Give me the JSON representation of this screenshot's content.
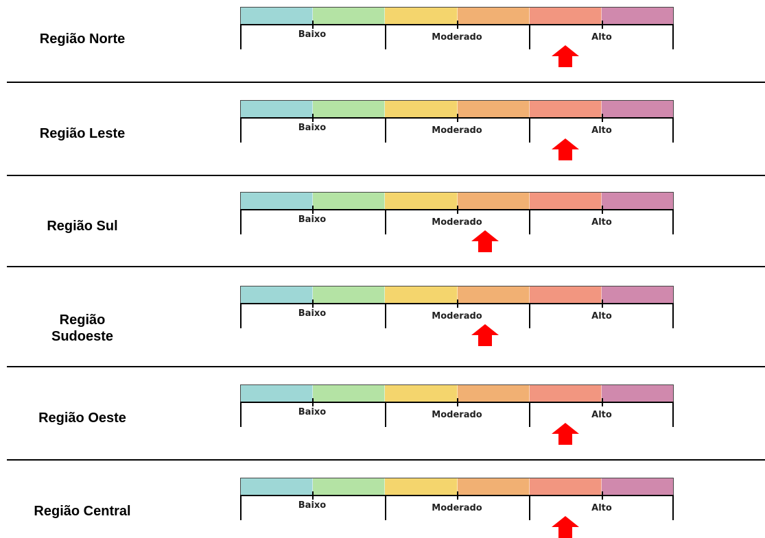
{
  "colors": {
    "band_colors": [
      "#9ed7d6",
      "#b4e3a4",
      "#f4d56d",
      "#f1b073",
      "#f29680",
      "#d089ad"
    ],
    "arrow": "#ff0000"
  },
  "scale_labels": {
    "low": "Baixo",
    "moderate": "Moderado",
    "high": "Alto"
  },
  "regions": [
    {
      "name": "Região Norte",
      "indicator_level": "Alto"
    },
    {
      "name": "Região Leste",
      "indicator_level": "Alto"
    },
    {
      "name": "Região Sul",
      "indicator_level": "Moderado"
    },
    {
      "name": "Região Sudoeste",
      "indicator_level": "Moderado"
    },
    {
      "name": "Região Oeste",
      "indicator_level": "Alto"
    },
    {
      "name": "Região Central",
      "indicator_level": "Alto"
    }
  ]
}
